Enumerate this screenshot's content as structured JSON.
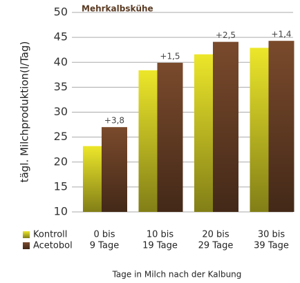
{
  "chart_data": {
    "type": "bar",
    "title": "Mehrkalbskühe",
    "ylabel": "tägl. Milchproduktion(l/Tag)",
    "xlabel": "Tage in Milch nach der Kalbung",
    "categories": [
      [
        "0 bis",
        "9 Tage"
      ],
      [
        "10 bis",
        "19 Tage"
      ],
      [
        "20 bis",
        "29 Tage"
      ],
      [
        "30 bis",
        "39 Tage"
      ]
    ],
    "series": [
      {
        "name": "Kontroll",
        "color": "#ece62a",
        "values": [
          23.2,
          38.4,
          41.6,
          42.9
        ]
      },
      {
        "name": "Acetobol",
        "color": "#7a4a2c",
        "values": [
          27.0,
          39.9,
          44.1,
          44.3
        ]
      }
    ],
    "annotations": [
      "+3,8",
      "+1,5",
      "+2,5",
      "+1,4"
    ],
    "ylim": [
      10,
      50
    ],
    "yticks": [
      10,
      15,
      20,
      25,
      30,
      35,
      40,
      45,
      50
    ],
    "grid": true
  }
}
